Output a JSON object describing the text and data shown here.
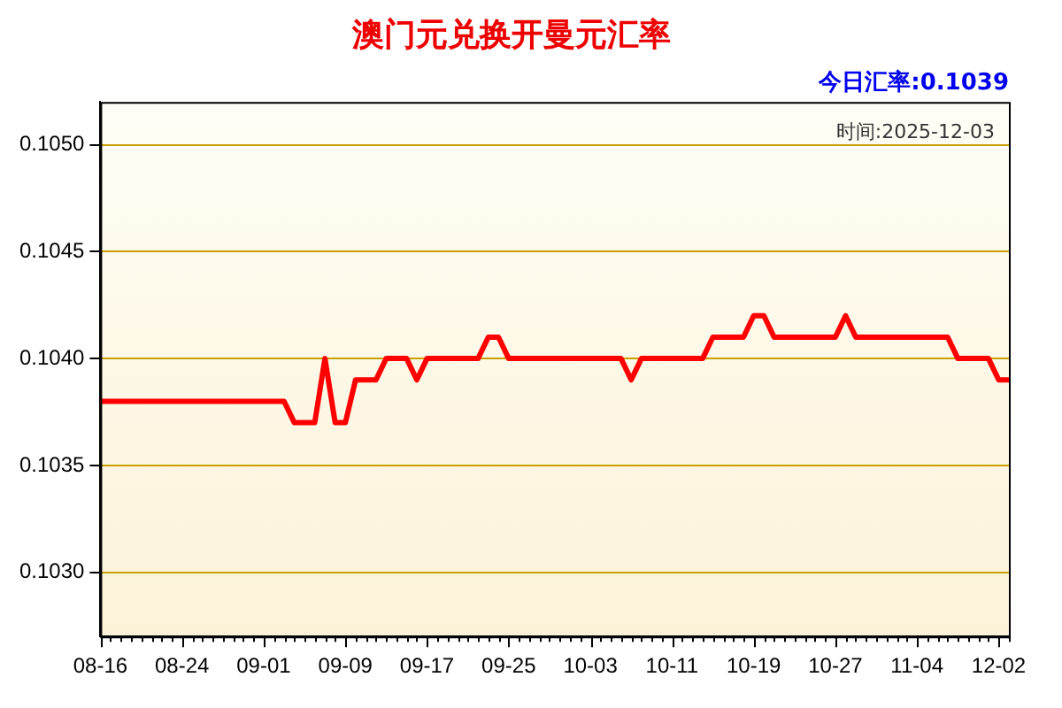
{
  "chart_data": {
    "type": "line",
    "title": "澳门元兑换开曼元汇率",
    "annotations": [
      "今日汇率:0.1039",
      "时间:2025-12-03"
    ],
    "categories": [
      "08-16",
      null,
      null,
      null,
      null,
      null,
      null,
      null,
      "08-24",
      null,
      null,
      null,
      null,
      null,
      null,
      null,
      "09-01",
      null,
      null,
      null,
      null,
      null,
      null,
      null,
      "09-09",
      null,
      null,
      null,
      null,
      null,
      null,
      null,
      "09-17",
      null,
      null,
      null,
      null,
      null,
      null,
      null,
      "09-25",
      null,
      null,
      null,
      null,
      null,
      null,
      null,
      "10-03",
      null,
      null,
      null,
      null,
      null,
      null,
      null,
      "10-11",
      null,
      null,
      null,
      null,
      null,
      null,
      null,
      "10-19",
      null,
      null,
      null,
      null,
      null,
      null,
      null,
      "10-27",
      null,
      null,
      null,
      null,
      null,
      null,
      null,
      "11-04",
      null,
      null,
      null,
      null,
      null,
      null,
      null,
      "12-02",
      null
    ],
    "series": [
      {
        "color": "#ff0000",
        "values": [
          0.1038,
          0.1038,
          0.1038,
          0.1038,
          0.1038,
          0.1038,
          0.1038,
          0.1038,
          0.1038,
          0.1038,
          0.1038,
          0.1038,
          0.1038,
          0.1038,
          0.1038,
          0.1038,
          0.1038,
          0.1038,
          0.1038,
          0.1037,
          0.1037,
          0.1037,
          0.104,
          0.1037,
          0.1037,
          0.1039,
          0.1039,
          0.1039,
          0.104,
          0.104,
          0.104,
          0.1039,
          0.104,
          0.104,
          0.104,
          0.104,
          0.104,
          0.104,
          0.1041,
          0.1041,
          0.104,
          0.104,
          0.104,
          0.104,
          0.104,
          0.104,
          0.104,
          0.104,
          0.104,
          0.104,
          0.104,
          0.104,
          0.1039,
          0.104,
          0.104,
          0.104,
          0.104,
          0.104,
          0.104,
          0.104,
          0.1041,
          0.1041,
          0.1041,
          0.1041,
          0.1042,
          0.1042,
          0.1041,
          0.1041,
          0.1041,
          0.1041,
          0.1041,
          0.1041,
          0.1041,
          0.1042,
          0.1041,
          0.1041,
          0.1041,
          0.1041,
          0.1041,
          0.1041,
          0.1041,
          0.1041,
          0.1041,
          0.1041,
          0.104,
          0.104,
          0.104,
          0.104,
          0.1039,
          0.1039
        ]
      }
    ],
    "ylim": [
      0.1027,
      0.1052
    ],
    "yticks": [
      {
        "value": 0.103,
        "label": "0.1030"
      },
      {
        "value": 0.1035,
        "label": "0.1035"
      },
      {
        "value": 0.104,
        "label": "0.1040"
      },
      {
        "value": 0.1045,
        "label": "0.1045"
      },
      {
        "value": 0.105,
        "label": "0.1050"
      }
    ],
    "grid": "y",
    "legend": false,
    "marker": "none",
    "line_style": "solid"
  }
}
